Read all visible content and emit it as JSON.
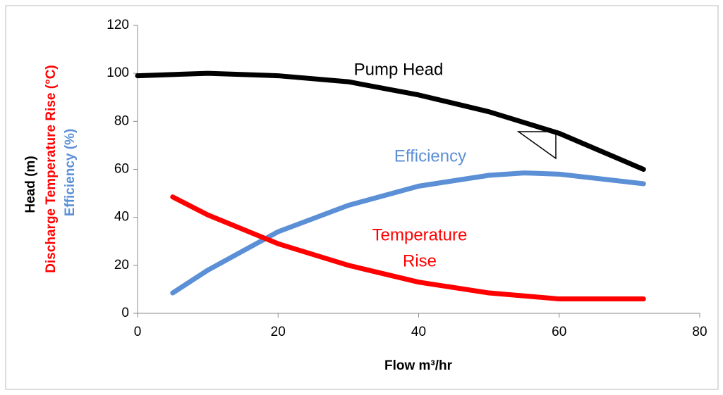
{
  "chart_data": {
    "type": "line",
    "xlabel": "Flow m³/hr",
    "ylabel_lines": [
      {
        "text": "Head (m)",
        "color": "#000000"
      },
      {
        "text": "Discharge Temperature Rise (°C)",
        "color": "#ff0000"
      },
      {
        "text": "Efficiency (%)",
        "color": "#5b8fd6"
      }
    ],
    "xlim": [
      0,
      80
    ],
    "xticks": [
      0,
      20,
      40,
      60,
      80
    ],
    "ylim": [
      0,
      120
    ],
    "yticks": [
      0,
      20,
      40,
      60,
      80,
      100,
      120
    ],
    "grid": false,
    "series": [
      {
        "name": "Pump Head",
        "color": "#000000",
        "x": [
          0,
          10,
          20,
          30,
          40,
          50,
          60,
          72
        ],
        "values": [
          99,
          100,
          99,
          96.5,
          91,
          84,
          75,
          60
        ]
      },
      {
        "name": "Efficiency",
        "color": "#5b8fd6",
        "x": [
          5,
          10,
          20,
          30,
          40,
          50,
          55,
          60,
          72
        ],
        "values": [
          8.5,
          18,
          34,
          45,
          53,
          57.5,
          58.5,
          58,
          54
        ]
      },
      {
        "name": "Temperature Rise",
        "color": "#ff0000",
        "x": [
          5,
          10,
          20,
          30,
          40,
          50,
          60,
          72
        ],
        "values": [
          48.5,
          41,
          29,
          20,
          13,
          8.5,
          6,
          6
        ]
      }
    ],
    "annotations": [
      {
        "text": "Pump Head",
        "color": "#000000"
      },
      {
        "text": "Efficiency",
        "color": "#5b8fd6"
      },
      {
        "text": "Temperature",
        "color": "#ff0000"
      },
      {
        "text": "Rise",
        "color": "#ff0000"
      }
    ]
  }
}
